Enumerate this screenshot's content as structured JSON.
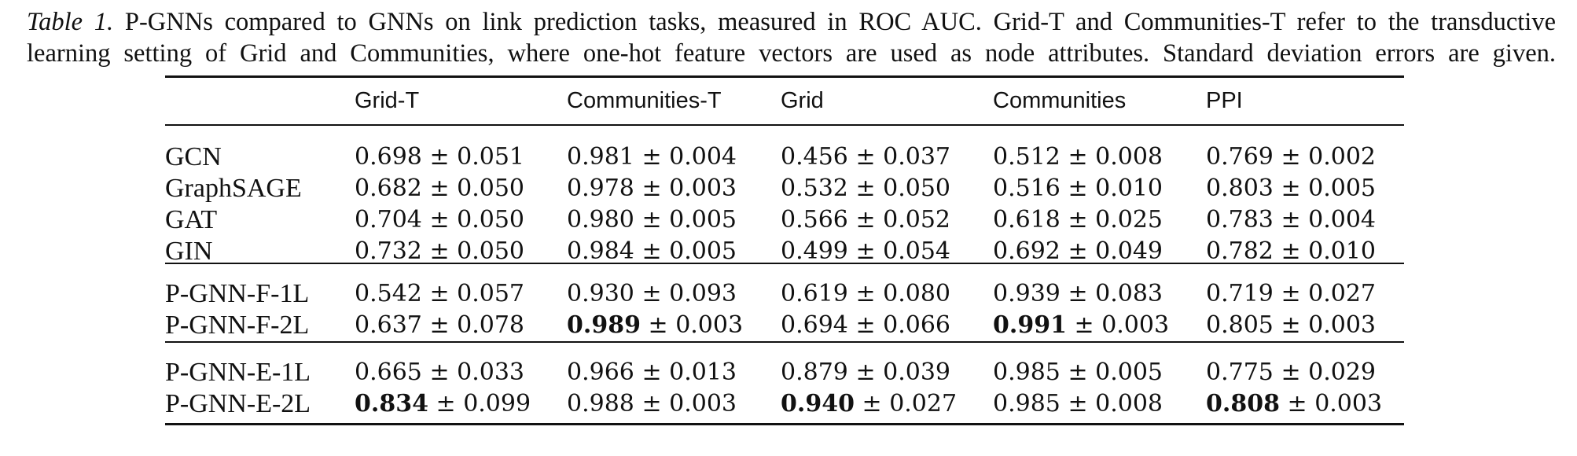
{
  "caption": {
    "label": "Table 1.",
    "line1_text": "P-GNNs compared to GNNs on link prediction tasks, measured in ROC AUC. Grid-T and Communities-T refer to the transductive",
    "line2_text": "learning setting of Grid and Communities, where one-hot feature vectors are used as node attributes. Standard deviation errors are given."
  },
  "table": {
    "headers": [
      "",
      "Grid-T",
      "Communities-T",
      "Grid",
      "Communities",
      "PPI"
    ],
    "pm": "±",
    "groups": [
      [
        {
          "model": "GCN",
          "cells": [
            [
              "0.698",
              "0.051",
              false
            ],
            [
              "0.981",
              "0.004",
              false
            ],
            [
              "0.456",
              "0.037",
              false
            ],
            [
              "0.512",
              "0.008",
              false
            ],
            [
              "0.769",
              "0.002",
              false
            ]
          ]
        },
        {
          "model": "GraphSAGE",
          "cells": [
            [
              "0.682",
              "0.050",
              false
            ],
            [
              "0.978",
              "0.003",
              false
            ],
            [
              "0.532",
              "0.050",
              false
            ],
            [
              "0.516",
              "0.010",
              false
            ],
            [
              "0.803",
              "0.005",
              false
            ]
          ]
        },
        {
          "model": "GAT",
          "cells": [
            [
              "0.704",
              "0.050",
              false
            ],
            [
              "0.980",
              "0.005",
              false
            ],
            [
              "0.566",
              "0.052",
              false
            ],
            [
              "0.618",
              "0.025",
              false
            ],
            [
              "0.783",
              "0.004",
              false
            ]
          ]
        },
        {
          "model": "GIN",
          "cells": [
            [
              "0.732",
              "0.050",
              false
            ],
            [
              "0.984",
              "0.005",
              false
            ],
            [
              "0.499",
              "0.054",
              false
            ],
            [
              "0.692",
              "0.049",
              false
            ],
            [
              "0.782",
              "0.010",
              false
            ]
          ]
        }
      ],
      [
        {
          "model": "P-GNN-F-1L",
          "cells": [
            [
              "0.542",
              "0.057",
              false
            ],
            [
              "0.930",
              "0.093",
              false
            ],
            [
              "0.619",
              "0.080",
              false
            ],
            [
              "0.939",
              "0.083",
              false
            ],
            [
              "0.719",
              "0.027",
              false
            ]
          ]
        },
        {
          "model": "P-GNN-F-2L",
          "cells": [
            [
              "0.637",
              "0.078",
              false
            ],
            [
              "0.989",
              "0.003",
              true
            ],
            [
              "0.694",
              "0.066",
              false
            ],
            [
              "0.991",
              "0.003",
              true
            ],
            [
              "0.805",
              "0.003",
              false
            ]
          ]
        }
      ],
      [
        {
          "model": "P-GNN-E-1L",
          "cells": [
            [
              "0.665",
              "0.033",
              false
            ],
            [
              "0.966",
              "0.013",
              false
            ],
            [
              "0.879",
              "0.039",
              false
            ],
            [
              "0.985",
              "0.005",
              false
            ],
            [
              "0.775",
              "0.029",
              false
            ]
          ]
        },
        {
          "model": "P-GNN-E-2L",
          "cells": [
            [
              "0.834",
              "0.099",
              true
            ],
            [
              "0.988",
              "0.003",
              false
            ],
            [
              "0.940",
              "0.027",
              true
            ],
            [
              "0.985",
              "0.008",
              false
            ],
            [
              "0.808",
              "0.003",
              true
            ]
          ]
        }
      ]
    ]
  }
}
